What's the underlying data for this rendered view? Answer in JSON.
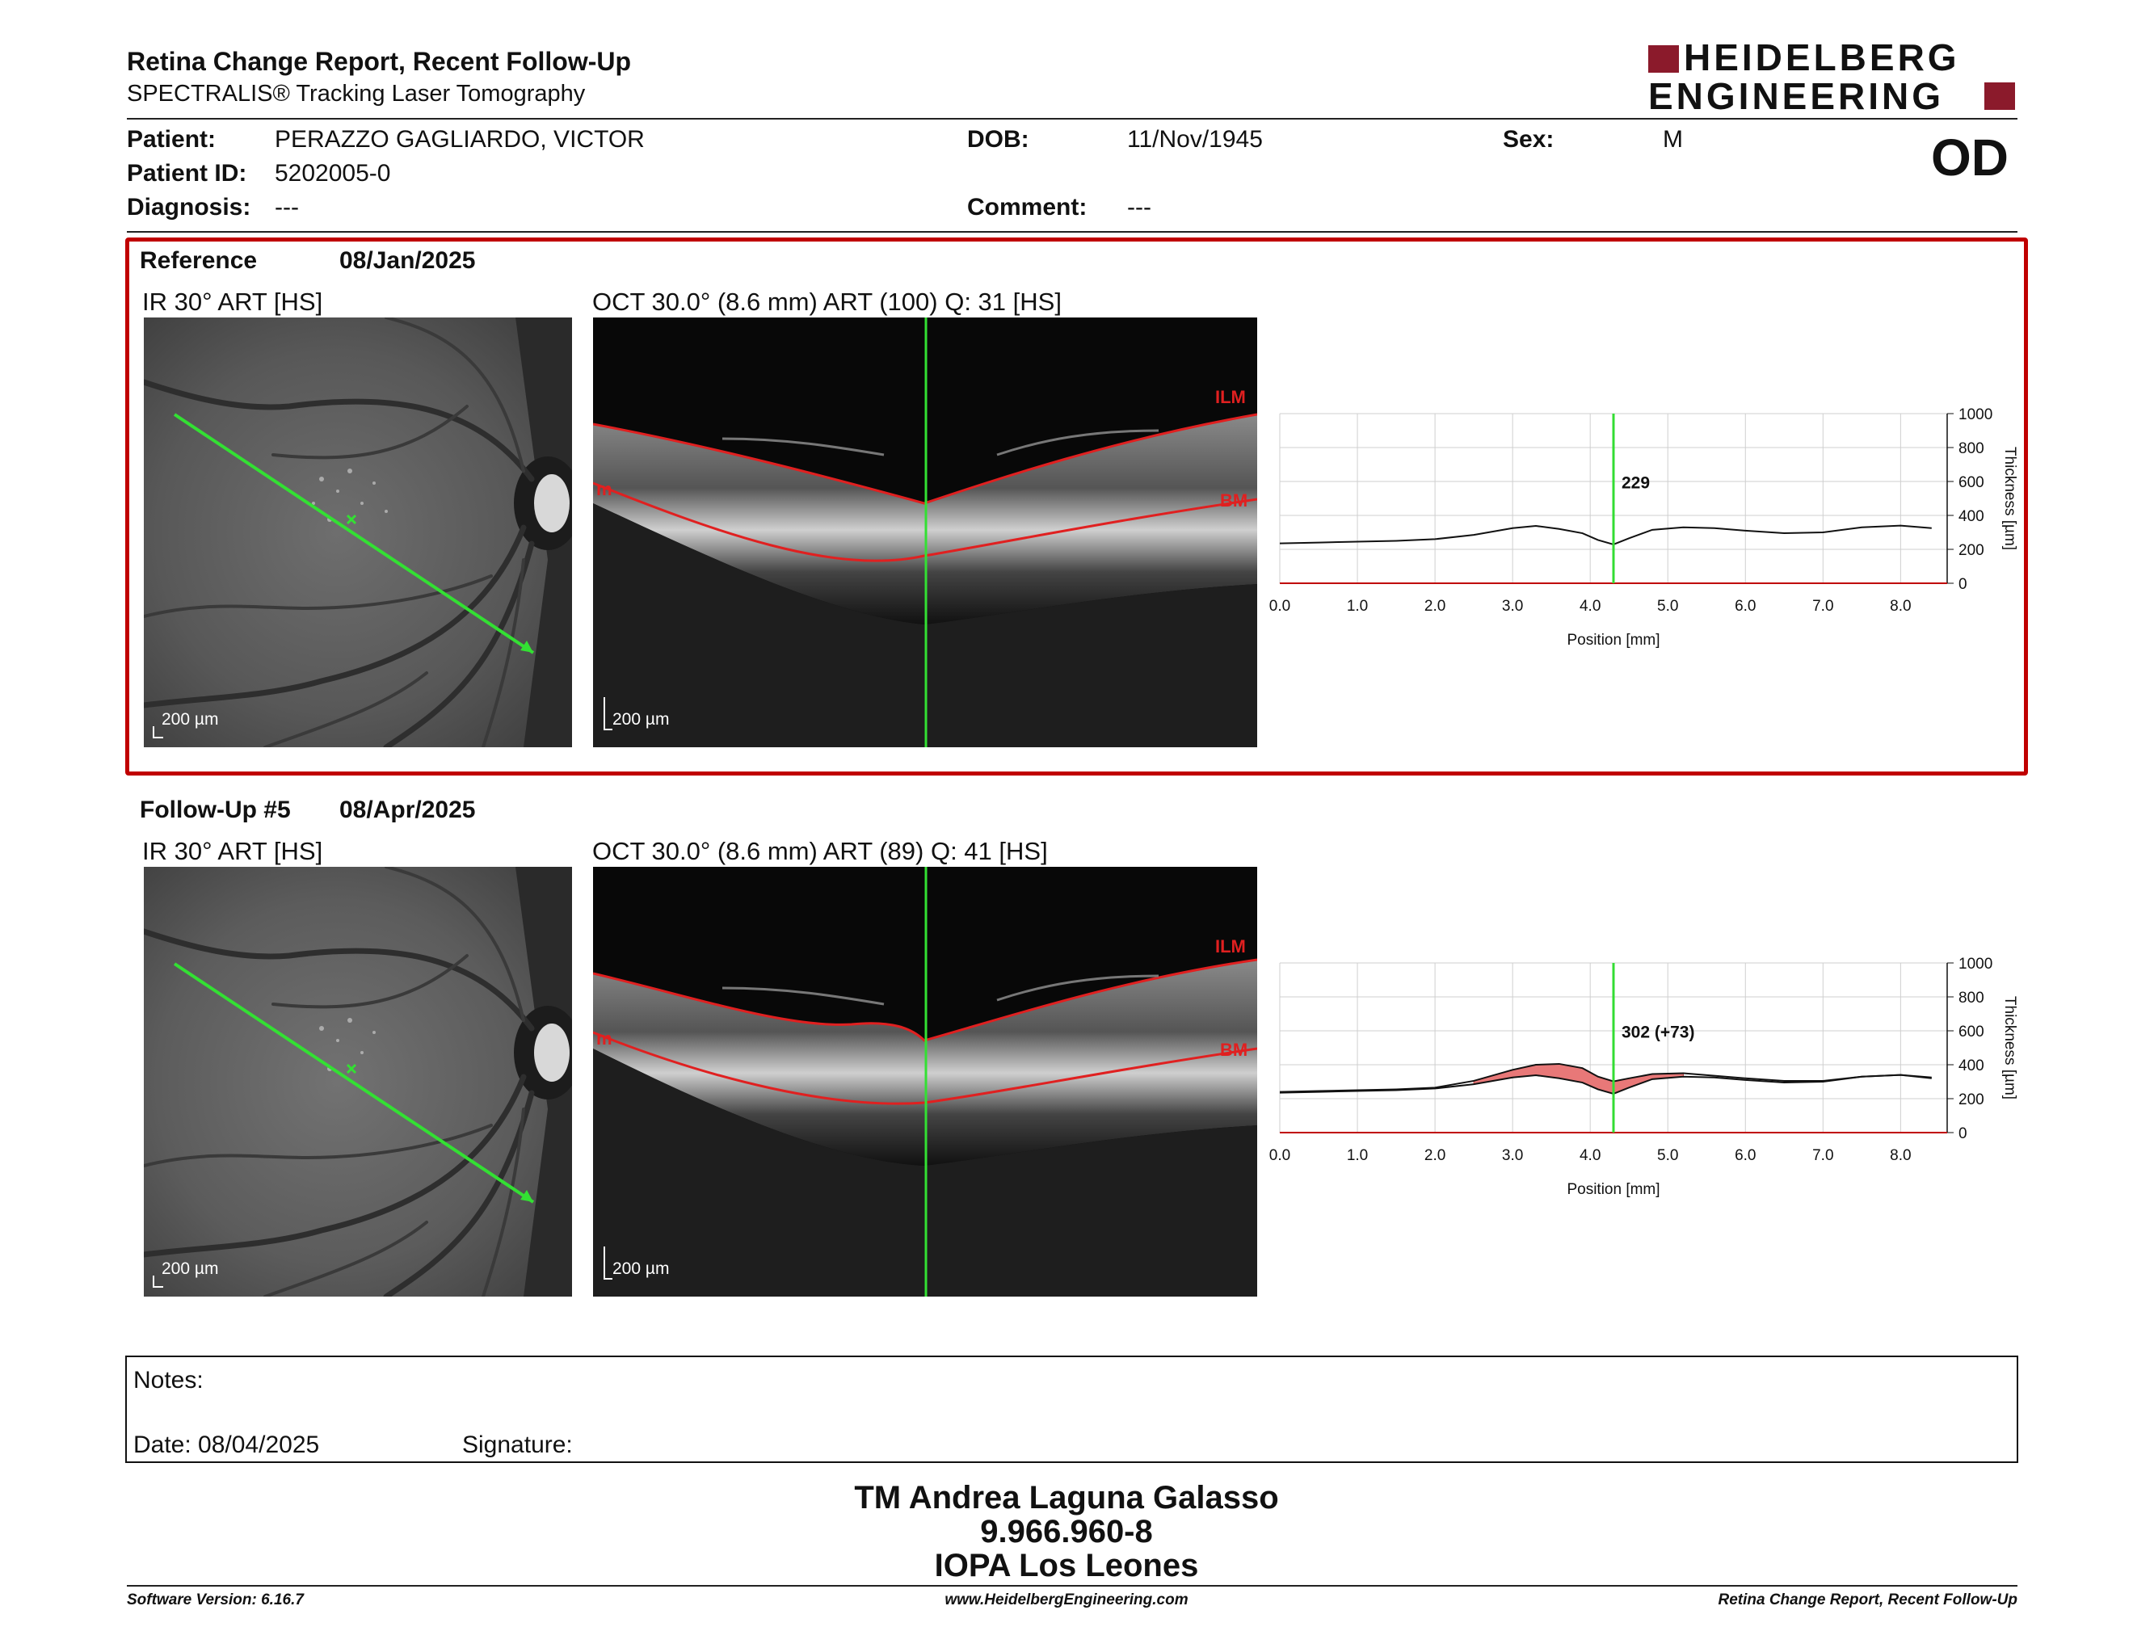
{
  "header": {
    "title": "Retina Change Report, Recent Follow-Up",
    "subtitle": "SPECTRALIS® Tracking Laser Tomography",
    "logo_line1": "HEIDELBERG",
    "logo_line2": "ENGINEERING",
    "eye": "OD",
    "brand_color": "#8b1a2b"
  },
  "patient": {
    "patient_label": "Patient:",
    "patient_value": "PERAZZO GAGLIARDO, VICTOR",
    "id_label": "Patient ID:",
    "id_value": "5202005-0",
    "diagnosis_label": "Diagnosis:",
    "diagnosis_value": "---",
    "dob_label": "DOB:",
    "dob_value": "11/Nov/1945",
    "comment_label": "Comment:",
    "comment_value": "---",
    "sex_label": "Sex:",
    "sex_value": "M"
  },
  "reference": {
    "label": "Reference",
    "date": "08/Jan/2025",
    "ir_caption": "IR 30° ART [HS]",
    "oct_caption": "OCT 30.0° (8.6 mm) ART (100) Q: 31 [HS]",
    "scale_ir": "200 µm",
    "scale_oct": "200 µm",
    "ilm": "ILM",
    "bm": "BM",
    "m": "m"
  },
  "followup": {
    "label": "Follow-Up #5",
    "date": "08/Apr/2025",
    "ir_caption": "IR 30° ART [HS]",
    "oct_caption": "OCT 30.0° (8.6 mm) ART (89) Q: 41 [HS]",
    "scale_ir": "200 µm",
    "scale_oct": "200 µm",
    "ilm": "ILM",
    "bm": "BM",
    "m": "m"
  },
  "chart_data": [
    {
      "type": "line",
      "xlabel": "Position [mm]",
      "ylabel": "Thickness [µm]",
      "xlim": [
        0,
        8.6
      ],
      "ylim": [
        0,
        1000
      ],
      "x_ticks": [
        "0.0",
        "1.0",
        "2.0",
        "3.0",
        "4.0",
        "5.0",
        "6.0",
        "7.0",
        "8.0"
      ],
      "y_ticks": [
        "0",
        "200",
        "400",
        "600",
        "800",
        "1000"
      ],
      "grid": true,
      "cursor_x": 4.3,
      "cursor_label": "229",
      "series": [
        {
          "x": [
            0.0,
            0.5,
            1.0,
            1.5,
            2.0,
            2.5,
            3.0,
            3.3,
            3.6,
            3.9,
            4.1,
            4.3,
            4.5,
            4.8,
            5.2,
            5.6,
            6.0,
            6.5,
            7.0,
            7.5,
            8.0,
            8.4
          ],
          "values": [
            235,
            240,
            245,
            250,
            260,
            285,
            325,
            338,
            320,
            295,
            255,
            229,
            265,
            315,
            330,
            325,
            310,
            295,
            300,
            330,
            340,
            325
          ]
        }
      ]
    },
    {
      "type": "area",
      "xlabel": "Position [mm]",
      "ylabel": "Thickness [µm]",
      "xlim": [
        0,
        8.6
      ],
      "ylim": [
        0,
        1000
      ],
      "x_ticks": [
        "0.0",
        "1.0",
        "2.0",
        "3.0",
        "4.0",
        "5.0",
        "6.0",
        "7.0",
        "8.0"
      ],
      "y_ticks": [
        "0",
        "200",
        "400",
        "600",
        "800",
        "1000"
      ],
      "grid": true,
      "cursor_x": 4.3,
      "cursor_label": "302 (+73)",
      "series": [
        {
          "x": [
            0.0,
            0.5,
            1.0,
            1.5,
            2.0,
            2.5,
            3.0,
            3.3,
            3.6,
            3.9,
            4.1,
            4.3,
            4.5,
            4.8,
            5.2,
            5.6,
            6.0,
            6.5,
            7.0,
            7.5,
            8.0,
            8.4
          ],
          "values": [
            240,
            245,
            250,
            255,
            265,
            305,
            370,
            400,
            405,
            380,
            330,
            302,
            320,
            345,
            350,
            335,
            320,
            305,
            305,
            330,
            340,
            320
          ]
        },
        {
          "x": [
            0.0,
            0.5,
            1.0,
            1.5,
            2.0,
            2.5,
            3.0,
            3.3,
            3.6,
            3.9,
            4.1,
            4.3,
            4.5,
            4.8,
            5.2,
            5.6,
            6.0,
            6.5,
            7.0,
            7.5,
            8.0,
            8.4
          ],
          "values": [
            235,
            240,
            245,
            250,
            260,
            285,
            325,
            338,
            320,
            295,
            255,
            229,
            265,
            315,
            330,
            325,
            310,
            295,
            300,
            330,
            340,
            325
          ]
        }
      ]
    }
  ],
  "notes": {
    "notes_label": "Notes:",
    "date_label": "Date: 08/04/2025",
    "signature_label": "Signature:"
  },
  "signoff": {
    "line1": "TM Andrea Laguna Galasso",
    "line2": "9.966.960-8",
    "line3": "IOPA Los Leones"
  },
  "footer": {
    "software": "Software Version: 6.16.7",
    "website": "www.HeidelbergEngineering.com",
    "report": "Retina Change Report, Recent Follow-Up"
  }
}
